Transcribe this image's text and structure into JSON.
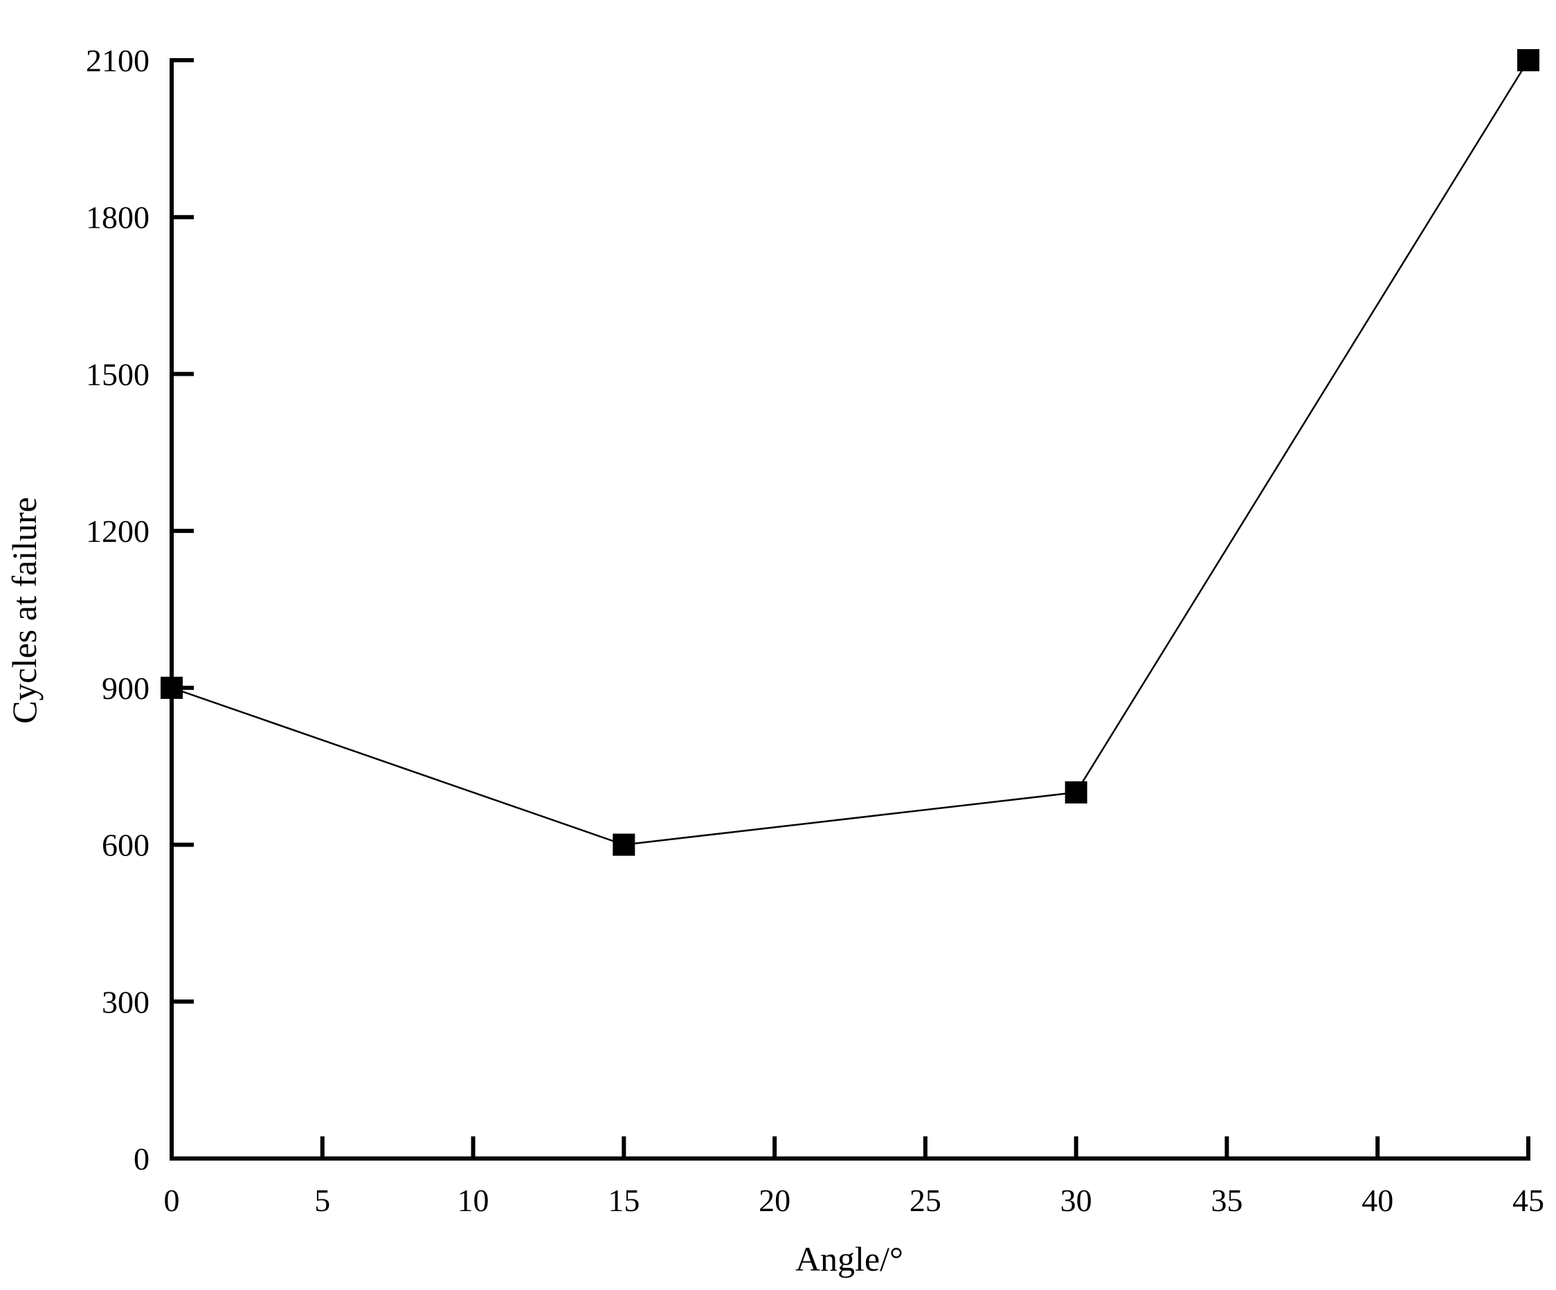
{
  "chart_data": {
    "type": "line",
    "title": "",
    "xlabel": "Angle/°",
    "ylabel": "Cycles at failure",
    "xlim": [
      0,
      45
    ],
    "ylim": [
      0,
      2100
    ],
    "xticks": [
      0,
      5,
      10,
      15,
      20,
      25,
      30,
      35,
      40,
      45
    ],
    "yticks": [
      0,
      300,
      600,
      900,
      1200,
      1500,
      1800,
      2100
    ],
    "grid": false,
    "legend": "none",
    "marker": "square",
    "line_color": "#000000",
    "marker_color": "#000000",
    "series": [
      {
        "x": [
          0,
          15,
          30,
          45
        ],
        "y": [
          900,
          600,
          700,
          2100
        ]
      }
    ]
  }
}
